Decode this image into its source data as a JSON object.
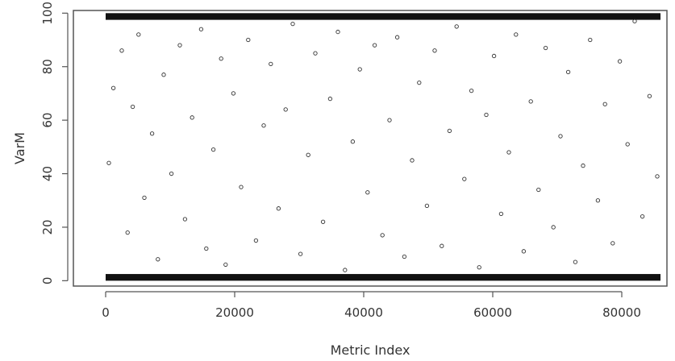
{
  "chart_data": {
    "type": "scatter",
    "title": "",
    "xlabel": "Metric Index",
    "ylabel": "VarM",
    "xlim": [
      -5000,
      87000
    ],
    "ylim": [
      -2,
      101
    ],
    "x_ticks": [
      0,
      20000,
      40000,
      60000,
      80000
    ],
    "x_tick_labels": [
      "0",
      "20000",
      "40000",
      "60000",
      "80000"
    ],
    "y_ticks": [
      0,
      20,
      40,
      60,
      80,
      100
    ],
    "y_tick_labels": [
      "0",
      "20",
      "40",
      "60",
      "80",
      "100"
    ],
    "grid": false,
    "legend": "none",
    "series": [
      {
        "values_note_x_range": [
          0,
          86000
        ],
        "dense_bands": [
          {
            "y_range": [
              97.5,
              100
            ],
            "x_range": [
              0,
              86000
            ]
          },
          {
            "y_range": [
              0,
              2.5
            ],
            "x_range": [
              0,
              86000
            ]
          }
        ],
        "points": [
          [
            500,
            44
          ],
          [
            1200,
            72
          ],
          [
            2500,
            86
          ],
          [
            3400,
            18
          ],
          [
            4200,
            65
          ],
          [
            5100,
            92
          ],
          [
            6000,
            31
          ],
          [
            7200,
            55
          ],
          [
            8100,
            8
          ],
          [
            9000,
            77
          ],
          [
            10200,
            40
          ],
          [
            11500,
            88
          ],
          [
            12300,
            23
          ],
          [
            13400,
            61
          ],
          [
            14800,
            94
          ],
          [
            15600,
            12
          ],
          [
            16700,
            49
          ],
          [
            17900,
            83
          ],
          [
            18600,
            6
          ],
          [
            19800,
            70
          ],
          [
            21000,
            35
          ],
          [
            22100,
            90
          ],
          [
            23300,
            15
          ],
          [
            24500,
            58
          ],
          [
            25600,
            81
          ],
          [
            26800,
            27
          ],
          [
            27900,
            64
          ],
          [
            29000,
            96
          ],
          [
            30200,
            10
          ],
          [
            31400,
            47
          ],
          [
            32500,
            85
          ],
          [
            33700,
            22
          ],
          [
            34800,
            68
          ],
          [
            36000,
            93
          ],
          [
            37100,
            4
          ],
          [
            38300,
            52
          ],
          [
            39400,
            79
          ],
          [
            40600,
            33
          ],
          [
            41700,
            88
          ],
          [
            42900,
            17
          ],
          [
            44000,
            60
          ],
          [
            45200,
            91
          ],
          [
            46300,
            9
          ],
          [
            47500,
            45
          ],
          [
            48600,
            74
          ],
          [
            49800,
            28
          ],
          [
            51000,
            86
          ],
          [
            52100,
            13
          ],
          [
            53300,
            56
          ],
          [
            54400,
            95
          ],
          [
            55600,
            38
          ],
          [
            56700,
            71
          ],
          [
            57900,
            5
          ],
          [
            59000,
            62
          ],
          [
            60200,
            84
          ],
          [
            61300,
            25
          ],
          [
            62500,
            48
          ],
          [
            63600,
            92
          ],
          [
            64800,
            11
          ],
          [
            65900,
            67
          ],
          [
            67100,
            34
          ],
          [
            68200,
            87
          ],
          [
            69400,
            20
          ],
          [
            70500,
            54
          ],
          [
            71700,
            78
          ],
          [
            72800,
            7
          ],
          [
            74000,
            43
          ],
          [
            75100,
            90
          ],
          [
            76300,
            30
          ],
          [
            77400,
            66
          ],
          [
            78600,
            14
          ],
          [
            79700,
            82
          ],
          [
            80900,
            51
          ],
          [
            82000,
            97
          ],
          [
            83200,
            24
          ],
          [
            84300,
            69
          ],
          [
            85500,
            39
          ]
        ]
      }
    ]
  }
}
